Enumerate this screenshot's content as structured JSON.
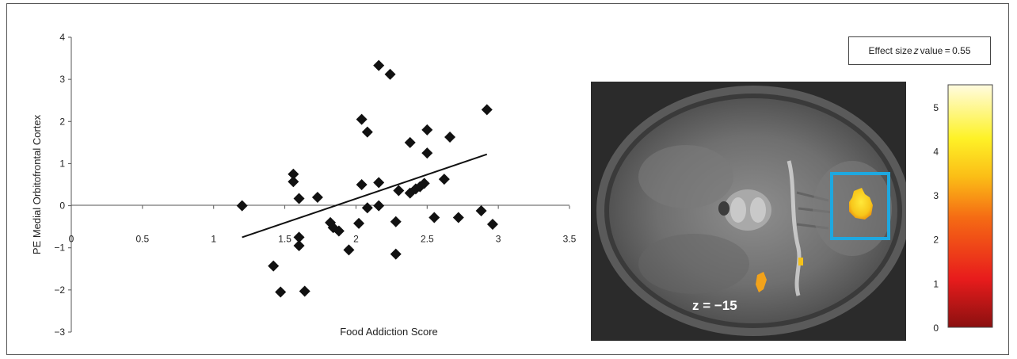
{
  "chart_data": [
    {
      "type": "scatter",
      "title": "",
      "xlabel": "Food Addiction Score",
      "ylabel": "PE Medial Orbitofrontal Cortex",
      "xlim": [
        0,
        3.5
      ],
      "ylim": [
        -3,
        4
      ],
      "x_ticks": [
        "0",
        "0.5",
        "1",
        "1.5",
        "2",
        "2.5",
        "3",
        "3.5"
      ],
      "y_ticks": [
        "4",
        "3",
        "2",
        "1",
        "0",
        "−1",
        "−2",
        "−3"
      ],
      "grid": false,
      "marker": "diamond",
      "points": [
        [
          1.2,
          0.0
        ],
        [
          1.42,
          -1.43
        ],
        [
          1.47,
          -2.05
        ],
        [
          1.56,
          0.75
        ],
        [
          1.56,
          0.57
        ],
        [
          1.6,
          0.17
        ],
        [
          1.6,
          -0.75
        ],
        [
          1.6,
          -0.95
        ],
        [
          1.64,
          -2.03
        ],
        [
          1.73,
          0.2
        ],
        [
          1.82,
          -0.4
        ],
        [
          1.84,
          -0.52
        ],
        [
          1.88,
          -0.6
        ],
        [
          1.95,
          -1.05
        ],
        [
          2.02,
          -0.42
        ],
        [
          2.04,
          0.5
        ],
        [
          2.04,
          2.05
        ],
        [
          2.08,
          -0.05
        ],
        [
          2.08,
          1.75
        ],
        [
          2.16,
          0.55
        ],
        [
          2.16,
          0.0
        ],
        [
          2.16,
          3.33
        ],
        [
          2.24,
          3.12
        ],
        [
          2.28,
          -1.15
        ],
        [
          2.28,
          -0.38
        ],
        [
          2.3,
          0.36
        ],
        [
          2.38,
          1.5
        ],
        [
          2.38,
          0.3
        ],
        [
          2.42,
          0.4
        ],
        [
          2.45,
          0.45
        ],
        [
          2.48,
          0.53
        ],
        [
          2.5,
          1.8
        ],
        [
          2.5,
          1.25
        ],
        [
          2.55,
          -0.28
        ],
        [
          2.62,
          0.63
        ],
        [
          2.66,
          1.63
        ],
        [
          2.72,
          -0.28
        ],
        [
          2.88,
          -0.12
        ],
        [
          2.92,
          2.28
        ],
        [
          2.96,
          -0.44
        ]
      ],
      "trendline": {
        "x": [
          1.2,
          2.92
        ],
        "y": [
          -0.75,
          1.22
        ]
      }
    },
    {
      "type": "heatmap",
      "title": "Effect size z value = 0.55",
      "title_parts": [
        "Effect size",
        "z",
        "value = 0.55"
      ],
      "slice_label": "z = −15",
      "colorbar": {
        "min": 0,
        "max": 5.5,
        "ticks": [
          "5",
          "4",
          "3",
          "2",
          "1",
          "0"
        ],
        "colors": [
          "#8b1010",
          "#e81c1c",
          "#f56a14",
          "#fbbd16",
          "#fef227",
          "#fffbe0"
        ]
      },
      "highlight_color": "#1ea8e0"
    }
  ]
}
